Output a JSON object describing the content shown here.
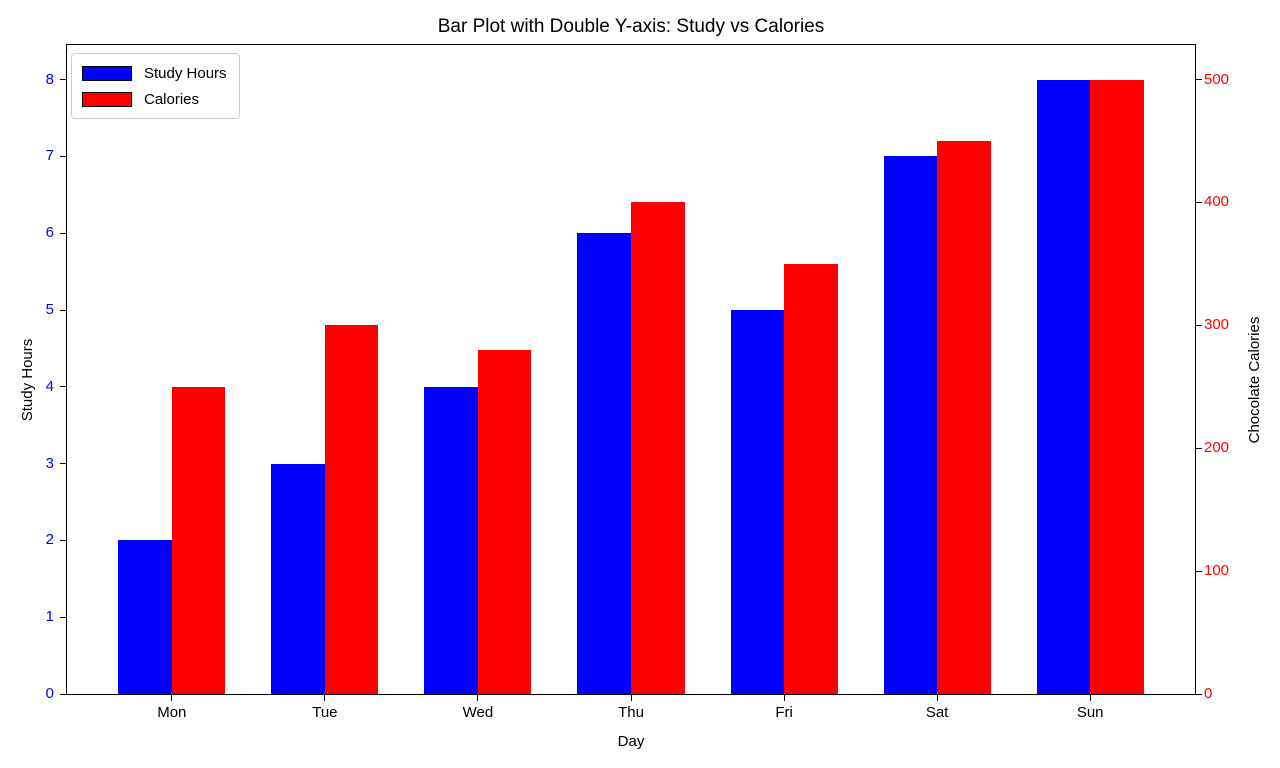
{
  "chart_data": {
    "type": "bar",
    "title": "Bar Plot with Double Y-axis: Study vs Calories",
    "xlabel": "Day",
    "ylabel_left": "Study Hours",
    "ylabel_right": "Chocolate Calories",
    "categories": [
      "Mon",
      "Tue",
      "Wed",
      "Thu",
      "Fri",
      "Sat",
      "Sun"
    ],
    "series": [
      {
        "name": "Study Hours",
        "axis": "left",
        "color": "#0000ff",
        "values": [
          2,
          3,
          4,
          6,
          5,
          7,
          8
        ]
      },
      {
        "name": "Calories",
        "axis": "right",
        "color": "#ff0000",
        "values": [
          250,
          300,
          280,
          400,
          350,
          450,
          500
        ]
      }
    ],
    "bar_width": 0.35,
    "left_axis": {
      "ticks": [
        0,
        1,
        2,
        3,
        4,
        5,
        6,
        7,
        8
      ],
      "lim": [
        0,
        8.45
      ],
      "label_color": "#0000ff"
    },
    "right_axis": {
      "ticks": [
        0,
        100,
        200,
        300,
        400,
        500
      ],
      "lim": [
        0,
        528.125
      ],
      "label_color": "#ff0000"
    },
    "legend": {
      "position": "upper-left",
      "entries": [
        "Study Hours",
        "Calories"
      ]
    },
    "grid": false,
    "background": "#ffffff"
  }
}
